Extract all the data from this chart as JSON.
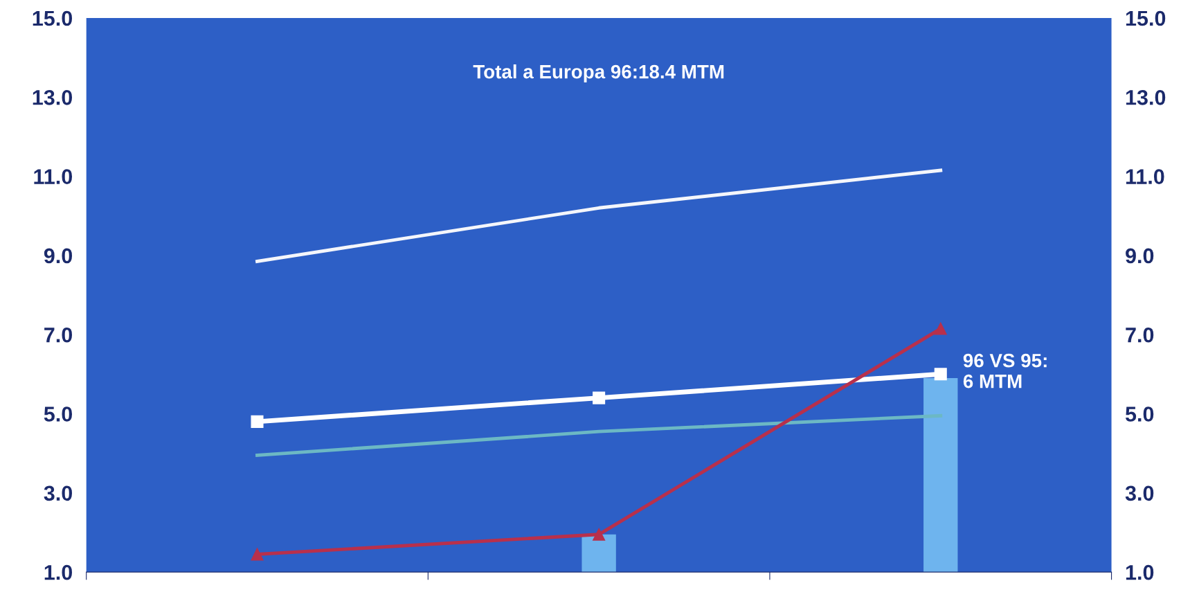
{
  "chart_data": {
    "type": "line",
    "categories": [
      null,
      null,
      null
    ],
    "series": [
      {
        "type": "bar",
        "color": "#6eb4ee",
        "values": [
          null,
          1.95,
          5.9
        ]
      },
      {
        "color": "#f4f6fb",
        "marker": "none",
        "values": [
          8.85,
          10.2,
          11.15
        ]
      },
      {
        "color": "#ffffff",
        "marker": "square",
        "values": [
          4.8,
          5.4,
          6.0
        ]
      },
      {
        "color": "#6cb8c4",
        "marker": "none",
        "values": [
          3.95,
          4.55,
          4.95
        ]
      },
      {
        "color": "#b8304c",
        "marker": "triangle",
        "values": [
          1.45,
          1.95,
          7.15
        ]
      }
    ],
    "annotations": [
      {
        "text": "Total a Europa 96:18.4 MTM"
      },
      {
        "text": "96 VS 95:\n6 MTM"
      }
    ],
    "ylim": [
      1,
      15
    ],
    "yticks": [
      {
        "value": 1,
        "label": "1.0"
      },
      {
        "value": 3,
        "label": "3.0"
      },
      {
        "value": 5,
        "label": "5.0"
      },
      {
        "value": 7,
        "label": "7.0"
      },
      {
        "value": 9,
        "label": "9.0"
      },
      {
        "value": 11,
        "label": "11.0"
      },
      {
        "value": 13,
        "label": "13.0"
      },
      {
        "value": 15,
        "label": "15.0"
      }
    ],
    "y2lim": [
      1,
      15
    ],
    "y2ticks": [
      {
        "value": 1,
        "label": "1.0"
      },
      {
        "value": 3,
        "label": "3.0"
      },
      {
        "value": 5,
        "label": "5.0"
      },
      {
        "value": 7,
        "label": "7.0"
      },
      {
        "value": 9,
        "label": "9.0"
      },
      {
        "value": 11,
        "label": "11.0"
      },
      {
        "value": 13,
        "label": "13.0"
      },
      {
        "value": 15,
        "label": "15.0"
      }
    ],
    "tick_labels": "y",
    "grid": false,
    "legend": false
  }
}
